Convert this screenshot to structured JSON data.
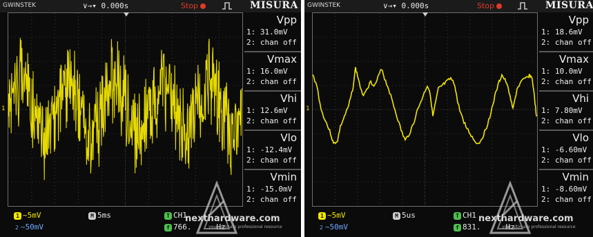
{
  "colors": {
    "trace": "#f2e600",
    "grid": "#5c5c5c",
    "run": "#e23a2a"
  },
  "screens": [
    {
      "brand": "GWINSTEK",
      "time": "0.000s",
      "run_state": "Stop",
      "menu_title": "MISURA",
      "ch1_marker": "1",
      "measurements": [
        {
          "name": "Vpp",
          "line1": "1: 31.0mV",
          "line2": "2: chan off"
        },
        {
          "name": "Vmax",
          "line1": "1: 16.0mV",
          "line2": "2: chan off"
        },
        {
          "name": "Vhi",
          "line1": "1: 12.6mV",
          "line2": "2: chan off"
        },
        {
          "name": "Vlo",
          "line1": "1: -12.4mV",
          "line2": "2: chan off"
        },
        {
          "name": "Vmin",
          "line1": "1: -15.0mV",
          "line2": "2: chan off"
        }
      ],
      "ch1_scale": "5mV",
      "ch2_label": "2",
      "ch2_scale": "50mV",
      "timebase": "5ms",
      "trigger_source": "CH1",
      "frequency": "766.",
      "freq_unit": "Hz"
    },
    {
      "brand": "GWINSTEK",
      "time": "0.000s",
      "run_state": "Stop",
      "menu_title": "MISURA",
      "ch1_marker": "1",
      "measurements": [
        {
          "name": "Vpp",
          "line1": "1: 18.6mV",
          "line2": "2: chan off"
        },
        {
          "name": "Vmax",
          "line1": "1: 10.0mV",
          "line2": "2: chan off"
        },
        {
          "name": "Vhi",
          "line1": "1: 7.80mV",
          "line2": "2: chan off"
        },
        {
          "name": "Vlo",
          "line1": "1: -6.60mV",
          "line2": "2: chan off"
        },
        {
          "name": "Vmin",
          "line1": "1: -8.60mV",
          "line2": "2: chan off"
        }
      ],
      "ch1_scale": "5mV",
      "ch2_label": "2",
      "ch2_scale": "50mV",
      "timebase": "5us",
      "trigger_source": "CH1",
      "frequency": "831.",
      "freq_unit": "Hz"
    }
  ],
  "watermark": {
    "text": "nexthardware.com",
    "tagline": "your ultimate professional resource"
  },
  "icons": {
    "trigger": "rising-edge-icon",
    "run": "run-dot-icon",
    "coupling": "ac-coupling-icon"
  }
}
